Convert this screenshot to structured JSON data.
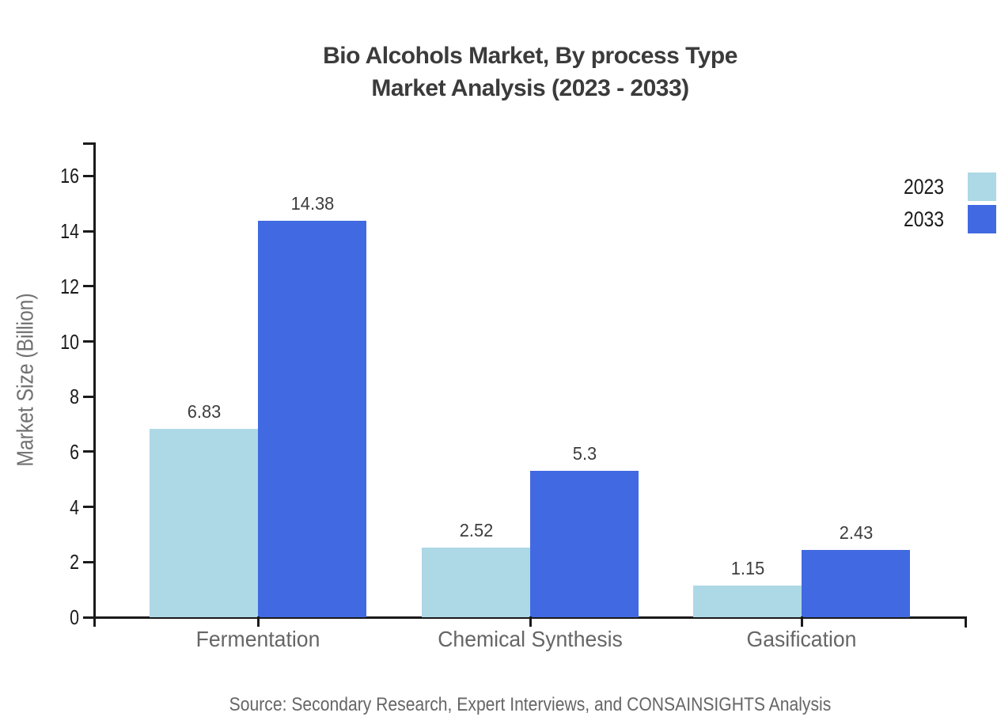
{
  "chart_data": {
    "type": "bar",
    "title_lines": [
      "Bio Alcohols Market, By process Type",
      "Market Analysis (2023 - 2033)"
    ],
    "title": "Bio Alcohols Market, By process Type Market Analysis (2023 - 2033)",
    "xlabel": "",
    "ylabel": "Market Size (Billion)",
    "categories": [
      "Fermentation",
      "Chemical Synthesis",
      "Gasification"
    ],
    "series": [
      {
        "name": "2023",
        "color": "#ADD8E6",
        "values": [
          6.83,
          2.52,
          1.15
        ]
      },
      {
        "name": "2033",
        "color": "#4169E1",
        "values": [
          14.38,
          5.3,
          2.43
        ]
      }
    ],
    "ylim": [
      0,
      16
    ],
    "yticks": [
      0,
      2,
      4,
      6,
      8,
      10,
      12,
      14,
      16
    ],
    "grid": false,
    "legend_position": "top-right",
    "axis_color": "#1a1a1a",
    "text_colors": {
      "title": "#3b3b3b",
      "tick_labels": "#1a1a1a",
      "category_labels": "#666666",
      "value_labels": "#3d3d3d",
      "axis_title": "#707070"
    }
  },
  "footer": {
    "source_text": "Source: Secondary Research, Expert Interviews, and CONSAINSIGHTS Analysis"
  }
}
